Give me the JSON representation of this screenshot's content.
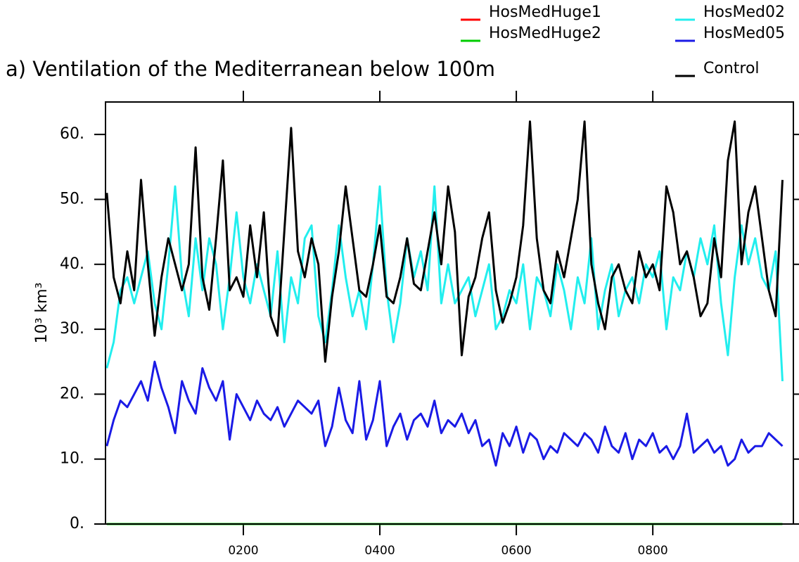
{
  "chart_data": {
    "type": "line",
    "title": "a) Ventilation of the Mediterranean below 100m",
    "y_label": "10³ km³",
    "x": [
      0,
      10,
      20,
      30,
      40,
      50,
      60,
      70,
      80,
      90,
      100,
      110,
      120,
      130,
      140,
      150,
      160,
      170,
      180,
      190,
      200,
      210,
      220,
      230,
      240,
      250,
      260,
      270,
      280,
      290,
      300,
      310,
      320,
      330,
      340,
      350,
      360,
      370,
      380,
      390,
      400,
      410,
      420,
      430,
      440,
      450,
      460,
      470,
      480,
      490,
      500,
      510,
      520,
      530,
      540,
      550,
      560,
      570,
      580,
      590,
      600,
      610,
      620,
      630,
      640,
      650,
      660,
      670,
      680,
      690,
      700,
      710,
      720,
      730,
      740,
      750,
      760,
      770,
      780,
      790,
      800,
      810,
      820,
      830,
      840,
      850,
      860,
      870,
      880,
      890,
      900,
      910,
      920,
      930,
      940,
      950,
      960,
      970,
      980,
      990
    ],
    "xlim": [
      -2,
      1006
    ],
    "xticks": [
      {
        "value": 200,
        "label": "0200"
      },
      {
        "value": 400,
        "label": "0400"
      },
      {
        "value": 600,
        "label": "0600"
      },
      {
        "value": 800,
        "label": "0800"
      }
    ],
    "ylim": [
      0,
      65
    ],
    "yticks": [
      {
        "value": 0,
        "label": "0."
      },
      {
        "value": 10,
        "label": "10."
      },
      {
        "value": 20,
        "label": "20."
      },
      {
        "value": 30,
        "label": "30."
      },
      {
        "value": 40,
        "label": "40."
      },
      {
        "value": 50,
        "label": "50."
      },
      {
        "value": 60,
        "label": "60."
      }
    ],
    "series": [
      {
        "name": "HosMedHuge1",
        "color": "#ff0000",
        "values": [
          0,
          0,
          0,
          0,
          0,
          0,
          0,
          0,
          0,
          0,
          0,
          0,
          0,
          0,
          0,
          0,
          0,
          0,
          0,
          0,
          0,
          0,
          0,
          0,
          0,
          0,
          0,
          0,
          0,
          0,
          0,
          0,
          0,
          0,
          0,
          0,
          0,
          0,
          0,
          0,
          0,
          0,
          0,
          0,
          0,
          0,
          0,
          0,
          0,
          0,
          0,
          0,
          0,
          0,
          0,
          0,
          0,
          0,
          0,
          0,
          0,
          0,
          0,
          0,
          0,
          0,
          0,
          0,
          0,
          0,
          0,
          0,
          0,
          0,
          0,
          0,
          0,
          0,
          0,
          0,
          0,
          0,
          0,
          0,
          0,
          0,
          0,
          0,
          0,
          0,
          0,
          0,
          0,
          0,
          0,
          0,
          0,
          0,
          0,
          0
        ]
      },
      {
        "name": "HosMedHuge2",
        "color": "#00cc00",
        "values": [
          0,
          0,
          0,
          0,
          0,
          0,
          0,
          0,
          0,
          0,
          0,
          0,
          0,
          0,
          0,
          0,
          0,
          0,
          0,
          0,
          0,
          0,
          0,
          0,
          0,
          0,
          0,
          0,
          0,
          0,
          0,
          0,
          0,
          0,
          0,
          0,
          0,
          0,
          0,
          0,
          0,
          0,
          0,
          0,
          0,
          0,
          0,
          0,
          0,
          0,
          0,
          0,
          0,
          0,
          0,
          0,
          0,
          0,
          0,
          0,
          0,
          0,
          0,
          0,
          0,
          0,
          0,
          0,
          0,
          0,
          0,
          0,
          0,
          0,
          0,
          0,
          0,
          0,
          0,
          0,
          0,
          0,
          0,
          0,
          0,
          0,
          0,
          0,
          0,
          0,
          0,
          0,
          0,
          0,
          0,
          0,
          0,
          0,
          0,
          0
        ]
      },
      {
        "name": "HosMed02",
        "color": "#22eeee",
        "values": [
          24,
          28,
          36,
          38,
          34,
          38,
          42,
          34,
          30,
          40,
          52,
          38,
          32,
          44,
          36,
          44,
          40,
          30,
          38,
          48,
          38,
          34,
          40,
          36,
          32,
          42,
          28,
          38,
          34,
          44,
          46,
          32,
          28,
          36,
          46,
          38,
          32,
          36,
          30,
          40,
          52,
          36,
          28,
          34,
          44,
          38,
          42,
          36,
          52,
          34,
          40,
          34,
          36,
          38,
          32,
          36,
          40,
          30,
          32,
          36,
          34,
          40,
          30,
          38,
          36,
          32,
          40,
          36,
          30,
          38,
          34,
          44,
          30,
          36,
          40,
          32,
          36,
          38,
          34,
          40,
          38,
          42,
          30,
          38,
          36,
          42,
          38,
          44,
          40,
          46,
          34,
          26,
          38,
          46,
          40,
          44,
          38,
          36,
          42,
          22
        ]
      },
      {
        "name": "HosMed05",
        "color": "#1a1ae6",
        "values": [
          12,
          16,
          19,
          18,
          20,
          22,
          19,
          25,
          21,
          18,
          14,
          22,
          19,
          17,
          24,
          21,
          19,
          22,
          13,
          20,
          18,
          16,
          19,
          17,
          16,
          18,
          15,
          17,
          19,
          18,
          17,
          19,
          12,
          15,
          21,
          16,
          14,
          22,
          13,
          16,
          22,
          12,
          15,
          17,
          13,
          16,
          17,
          15,
          19,
          14,
          16,
          15,
          17,
          14,
          16,
          12,
          13,
          9,
          14,
          12,
          15,
          11,
          14,
          13,
          10,
          12,
          11,
          14,
          13,
          12,
          14,
          13,
          11,
          15,
          12,
          11,
          14,
          10,
          13,
          12,
          14,
          11,
          12,
          10,
          12,
          17,
          11,
          12,
          13,
          11,
          12,
          9,
          10,
          13,
          11,
          12,
          12,
          14,
          13,
          12
        ]
      },
      {
        "name": "Control",
        "color": "#000000",
        "values": [
          51,
          38,
          34,
          42,
          36,
          53,
          40,
          29,
          38,
          44,
          40,
          36,
          40,
          58,
          38,
          33,
          44,
          56,
          36,
          38,
          35,
          46,
          38,
          48,
          32,
          29,
          45,
          61,
          42,
          38,
          44,
          40,
          25,
          35,
          42,
          52,
          44,
          36,
          35,
          40,
          46,
          35,
          34,
          38,
          44,
          37,
          36,
          42,
          48,
          40,
          52,
          45,
          26,
          35,
          38,
          44,
          48,
          36,
          31,
          34,
          38,
          46,
          62,
          44,
          36,
          34,
          42,
          38,
          44,
          50,
          62,
          40,
          34,
          30,
          38,
          40,
          36,
          34,
          42,
          38,
          40,
          36,
          52,
          48,
          40,
          42,
          38,
          32,
          34,
          44,
          38,
          56,
          62,
          40,
          48,
          52,
          44,
          36,
          32,
          53
        ]
      }
    ]
  }
}
